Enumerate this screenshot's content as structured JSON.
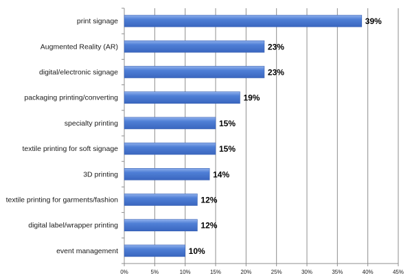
{
  "chart_data": {
    "type": "bar",
    "orientation": "horizontal",
    "categories": [
      "print signage",
      "Augmented Reality (AR)",
      "digital/electronic signage",
      "packaging printing/converting",
      "specialty printing",
      "textile printing for soft signage",
      "3D printing",
      "textile printing for garments/fashion",
      "digital label/wrapper printing",
      "event management"
    ],
    "values": [
      39,
      23,
      23,
      19,
      15,
      15,
      14,
      12,
      12,
      10
    ],
    "data_labels": [
      "39%",
      "23%",
      "23%",
      "19%",
      "15%",
      "15%",
      "14%",
      "12%",
      "12%",
      "10%"
    ],
    "xlim": [
      0,
      45
    ],
    "x_ticks": [
      0,
      5,
      10,
      15,
      20,
      25,
      30,
      35,
      40,
      45
    ],
    "x_tick_labels": [
      "0%",
      "5%",
      "10%",
      "15%",
      "20%",
      "25%",
      "30%",
      "35%",
      "40%",
      "45%"
    ],
    "title": "",
    "xlabel": "",
    "ylabel": "",
    "grid": "vertical",
    "legend": "none",
    "bar_color": "#4f7fd6",
    "bar_color_light": "#8fb0ec",
    "grid_color": "#8c8c8c"
  }
}
